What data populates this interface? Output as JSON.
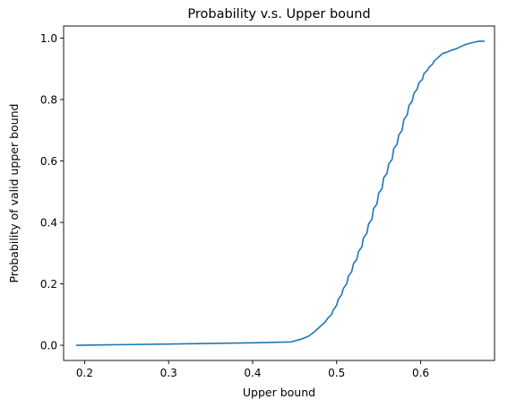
{
  "chart_data": {
    "type": "line",
    "title": "Probability v.s. Upper bound",
    "xlabel": "Upper bound",
    "ylabel": "Probability of valid upper bound",
    "xlim": [
      0.175,
      0.688
    ],
    "ylim": [
      -0.0495,
      1.0395
    ],
    "xticks": [
      0.2,
      0.3,
      0.4,
      0.5,
      0.6
    ],
    "xtick_labels": [
      "0.2",
      "0.3",
      "0.4",
      "0.5",
      "0.6"
    ],
    "yticks": [
      0.0,
      0.2,
      0.4,
      0.6,
      0.8,
      1.0
    ],
    "ytick_labels": [
      "0.0",
      "0.2",
      "0.4",
      "0.6",
      "0.8",
      "1.0"
    ],
    "grid": false,
    "line_color": "#1f77b4",
    "series": [
      {
        "x": [
          0.19,
          0.3,
          0.4,
          0.446,
          0.458,
          0.467,
          0.474,
          0.48,
          0.486,
          0.49,
          0.494,
          0.496,
          0.5,
          0.502,
          0.506,
          0.508,
          0.512,
          0.514,
          0.518,
          0.52,
          0.524,
          0.526,
          0.53,
          0.532,
          0.536,
          0.538,
          0.542,
          0.544,
          0.548,
          0.55,
          0.554,
          0.556,
          0.56,
          0.562,
          0.566,
          0.568,
          0.572,
          0.574,
          0.578,
          0.58,
          0.584,
          0.586,
          0.59,
          0.592,
          0.596,
          0.598,
          0.602,
          0.604,
          0.608,
          0.61,
          0.614,
          0.616,
          0.622,
          0.626,
          0.632,
          0.636,
          0.642,
          0.646,
          0.652,
          0.658,
          0.664,
          0.67,
          0.676
        ],
        "y": [
          0.0,
          0.004,
          0.008,
          0.011,
          0.02,
          0.03,
          0.045,
          0.06,
          0.075,
          0.09,
          0.1,
          0.115,
          0.13,
          0.15,
          0.165,
          0.185,
          0.2,
          0.225,
          0.24,
          0.265,
          0.28,
          0.305,
          0.32,
          0.35,
          0.365,
          0.395,
          0.41,
          0.445,
          0.46,
          0.495,
          0.51,
          0.545,
          0.56,
          0.59,
          0.605,
          0.64,
          0.655,
          0.685,
          0.7,
          0.735,
          0.75,
          0.78,
          0.795,
          0.82,
          0.835,
          0.855,
          0.865,
          0.885,
          0.895,
          0.905,
          0.915,
          0.925,
          0.94,
          0.95,
          0.955,
          0.96,
          0.965,
          0.97,
          0.978,
          0.983,
          0.987,
          0.99,
          0.99
        ]
      }
    ]
  }
}
